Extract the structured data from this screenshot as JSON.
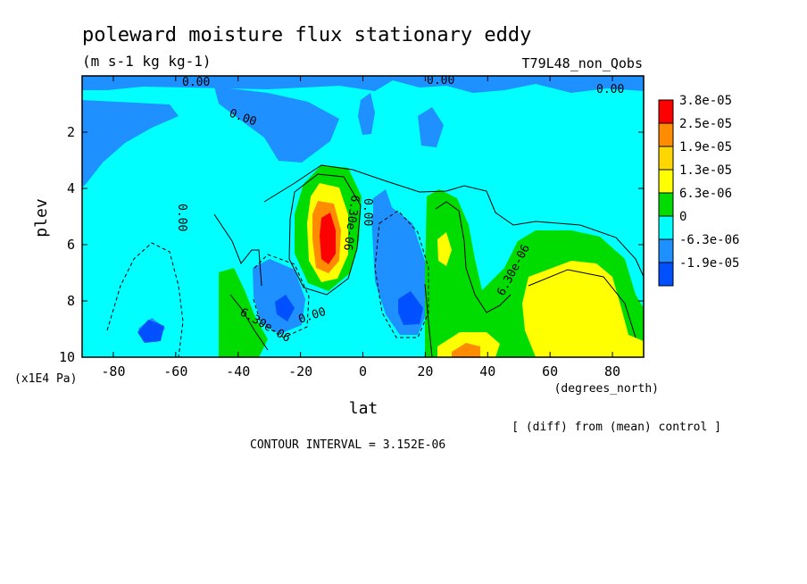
{
  "chart_data": {
    "type": "heatmap",
    "title": "poleward moisture flux stationary eddy",
    "units": "(m s-1 kg kg-1)",
    "run_label": "T79L48_non_Qobs",
    "xlabel": "lat",
    "x_units": "(degrees_north)",
    "ylabel": "plev",
    "y_units": "(x1E4 Pa)",
    "xlim": [
      -90,
      90
    ],
    "ylim": [
      0,
      10
    ],
    "y_inverted": true,
    "x_ticks": [
      -80,
      -60,
      -40,
      -20,
      0,
      20,
      40,
      60,
      80
    ],
    "y_ticks": [
      2,
      4,
      6,
      8,
      10
    ],
    "note": "[ (diff) from (mean) control ]",
    "contour_interval": "CONTOUR INTERVAL = 3.152E-06",
    "colorbar": {
      "labels": [
        "3.8e-05",
        "2.5e-05",
        "1.9e-05",
        "1.3e-05",
        "6.3e-06",
        "0",
        "-6.3e-06",
        "-1.9e-05"
      ],
      "colors": [
        "#ff0000",
        "#ff8c00",
        "#ffd700",
        "#ffff00",
        "#00dc00",
        "#00ffff",
        "#1e90ff",
        "#0050ff"
      ]
    },
    "contour_labels": [
      "0.00",
      "0.00",
      "0.00",
      "0.00",
      "0.00",
      "0.00",
      "6.30e-06",
      "0.00",
      "6.30e-06",
      "6.30e-06"
    ],
    "features": [
      {
        "lat": -12,
        "plev": 6.0,
        "value": 3.8e-05
      },
      {
        "lat": -12,
        "plev": 6.0,
        "value": 2.5e-05
      },
      {
        "lat": -12,
        "plev": 6.0,
        "value": 1.9e-05
      },
      {
        "lat": -12,
        "plev": 6.0,
        "value": 1.3e-05
      },
      {
        "lat": -12,
        "plev": 6.0,
        "value": 6.3e-06
      },
      {
        "lat": 65,
        "plev": 8.2,
        "value": 1.3e-05
      },
      {
        "lat": 32,
        "plev": 9.8,
        "value": 1.9e-05
      },
      {
        "lat": 28,
        "plev": 6.5,
        "value": 1.3e-05
      },
      {
        "lat": -25,
        "plev": 8.4,
        "value": -1.9e-05
      },
      {
        "lat": 14,
        "plev": 8.4,
        "value": -1.9e-05
      },
      {
        "lat": -68,
        "plev": 9.2,
        "value": -1.9e-05
      },
      {
        "lat": 10,
        "plev": 1.3,
        "value": -6.3e-06
      },
      {
        "lat": -25,
        "plev": 8.2,
        "value": -6.3e-06
      },
      {
        "lat": 13,
        "plev": 7.0,
        "value": -6.3e-06
      }
    ]
  }
}
